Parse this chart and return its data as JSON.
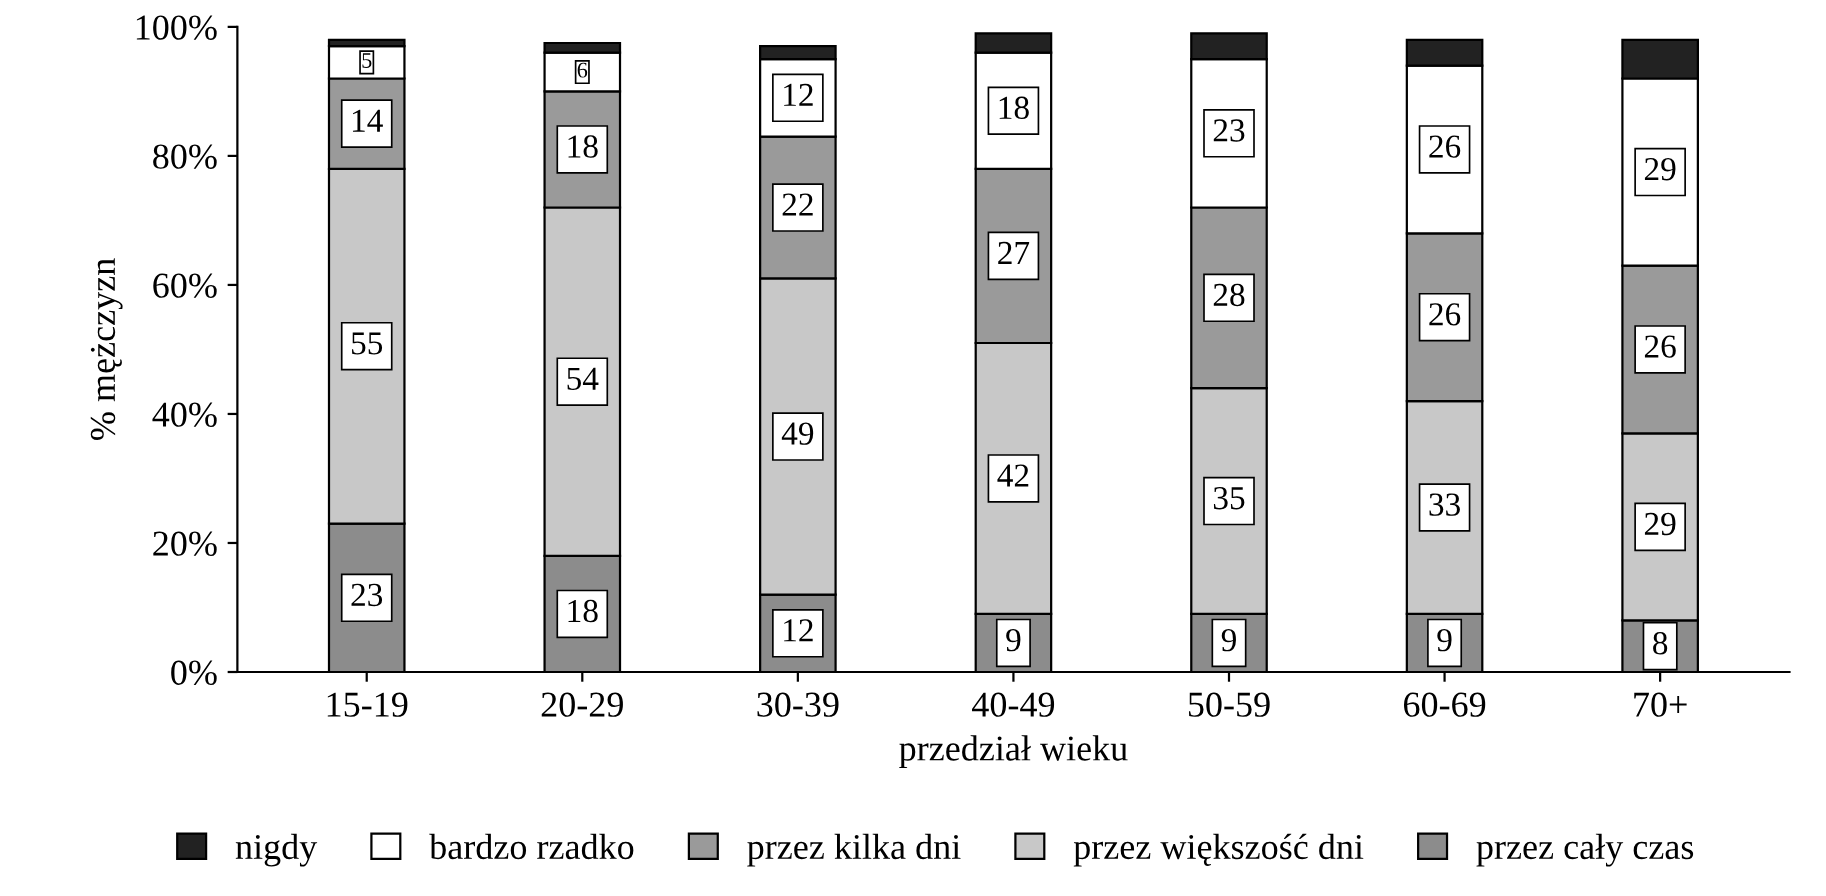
{
  "chart_data": {
    "type": "bar",
    "stacked": true,
    "xlabel": "przedział wieku",
    "ylabel": "% mężczyzn",
    "categories": [
      "15-19",
      "20-29",
      "30-39",
      "40-49",
      "50-59",
      "60-69",
      "70+"
    ],
    "series": [
      {
        "name": "przez cały czas",
        "color": "#8c8c8c",
        "values": [
          23,
          18,
          12,
          9,
          9,
          9,
          8
        ],
        "value_labels": [
          "23",
          "18",
          "12",
          "9",
          "9",
          "9",
          "8"
        ]
      },
      {
        "name": "przez większość dni",
        "color": "#c8c8c8",
        "values": [
          55,
          54,
          49,
          42,
          35,
          33,
          29
        ],
        "value_labels": [
          "55",
          "54",
          "49",
          "42",
          "35",
          "33",
          "29"
        ]
      },
      {
        "name": "przez kilka dni",
        "color": "#9a9a9a",
        "values": [
          14,
          18,
          22,
          27,
          28,
          26,
          26
        ],
        "value_labels": [
          "14",
          "18",
          "22",
          "27",
          "28",
          "26",
          "26"
        ]
      },
      {
        "name": "bardzo rzadko",
        "color": "#ffffff",
        "values": [
          5,
          6,
          12,
          18,
          23,
          26,
          29
        ],
        "value_labels": [
          "5",
          "6",
          "12",
          "18",
          "23",
          "26",
          "29"
        ]
      },
      {
        "name": "nigdy",
        "color": "#222222",
        "values": [
          1,
          1.5,
          2,
          3,
          4,
          4,
          6
        ]
      }
    ],
    "ylim": [
      0,
      100
    ],
    "yticks": [
      {
        "value": 0,
        "label": "0%"
      },
      {
        "value": 20,
        "label": "20%"
      },
      {
        "value": 40,
        "label": "40%"
      },
      {
        "value": 60,
        "label": "60%"
      },
      {
        "value": 80,
        "label": "80%"
      },
      {
        "value": 100,
        "label": "100%"
      }
    ],
    "grid": false,
    "legend": "bottom"
  }
}
